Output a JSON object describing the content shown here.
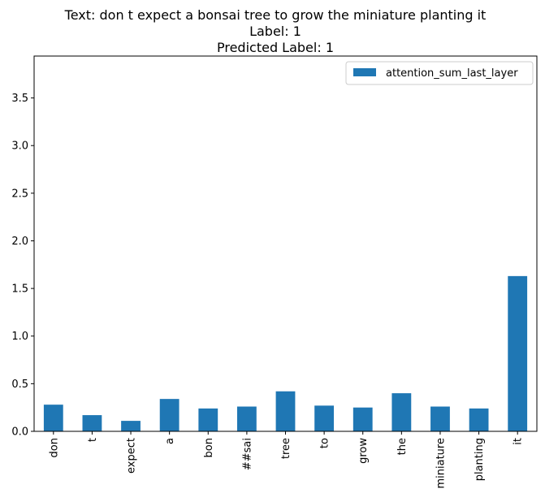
{
  "title_lines": [
    "Text: don t expect a bonsai tree to grow the miniature planting it",
    "Label: 1",
    "Predicted Label: 1"
  ],
  "chart_data": {
    "type": "bar",
    "categories": [
      "don",
      "t",
      "expect",
      "a",
      "bon",
      "##sai",
      "tree",
      "to",
      "grow",
      "the",
      "miniature",
      "planting",
      "it"
    ],
    "series": [
      {
        "name": "attention_sum_last_layer",
        "color": "#1f77b4",
        "values": [
          0.28,
          0.17,
          0.11,
          0.34,
          0.24,
          0.26,
          0.42,
          0.27,
          0.25,
          0.4,
          0.26,
          0.24,
          1.63
        ]
      }
    ],
    "xlabel": "",
    "ylabel": "",
    "ylim": [
      0,
      3.94
    ],
    "yticks": [
      "0.0",
      "0.5",
      "1.0",
      "1.5",
      "2.0",
      "2.5",
      "3.0",
      "3.5"
    ],
    "grid": false,
    "legend_position": "top-right"
  }
}
